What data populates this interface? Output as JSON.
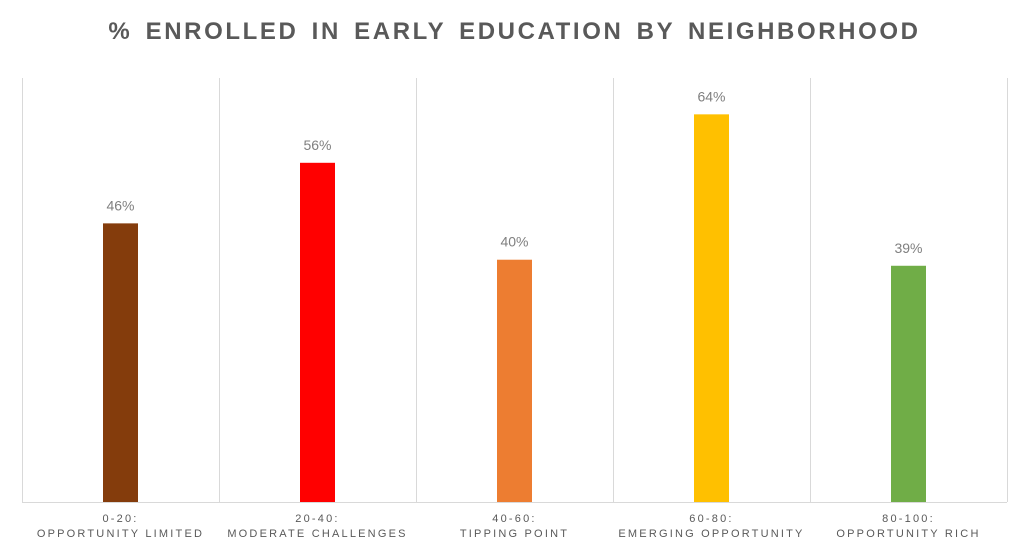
{
  "chart_data": {
    "type": "bar",
    "title": "% ENROLLED IN EARLY EDUCATION BY NEIGHBORHOOD",
    "categories": [
      [
        "0-20:",
        "OPPORTUNITY LIMITED"
      ],
      [
        "20-40:",
        "MODERATE CHALLENGES"
      ],
      [
        "40-60:",
        "TIPPING POINT"
      ],
      [
        "60-80:",
        "EMERGING OPPORTUNITY"
      ],
      [
        "80-100:",
        "OPPORTUNITY RICH"
      ]
    ],
    "values": [
      46,
      56,
      40,
      64,
      39
    ],
    "value_labels": [
      "46%",
      "56%",
      "40%",
      "64%",
      "39%"
    ],
    "colors": [
      "#843C0C",
      "#FF0000",
      "#ED7D31",
      "#FFC000",
      "#70AD47"
    ],
    "ylim": [
      0,
      70
    ],
    "grid": "vertical category separators",
    "legend": "none",
    "xlabel": "",
    "ylabel": ""
  }
}
